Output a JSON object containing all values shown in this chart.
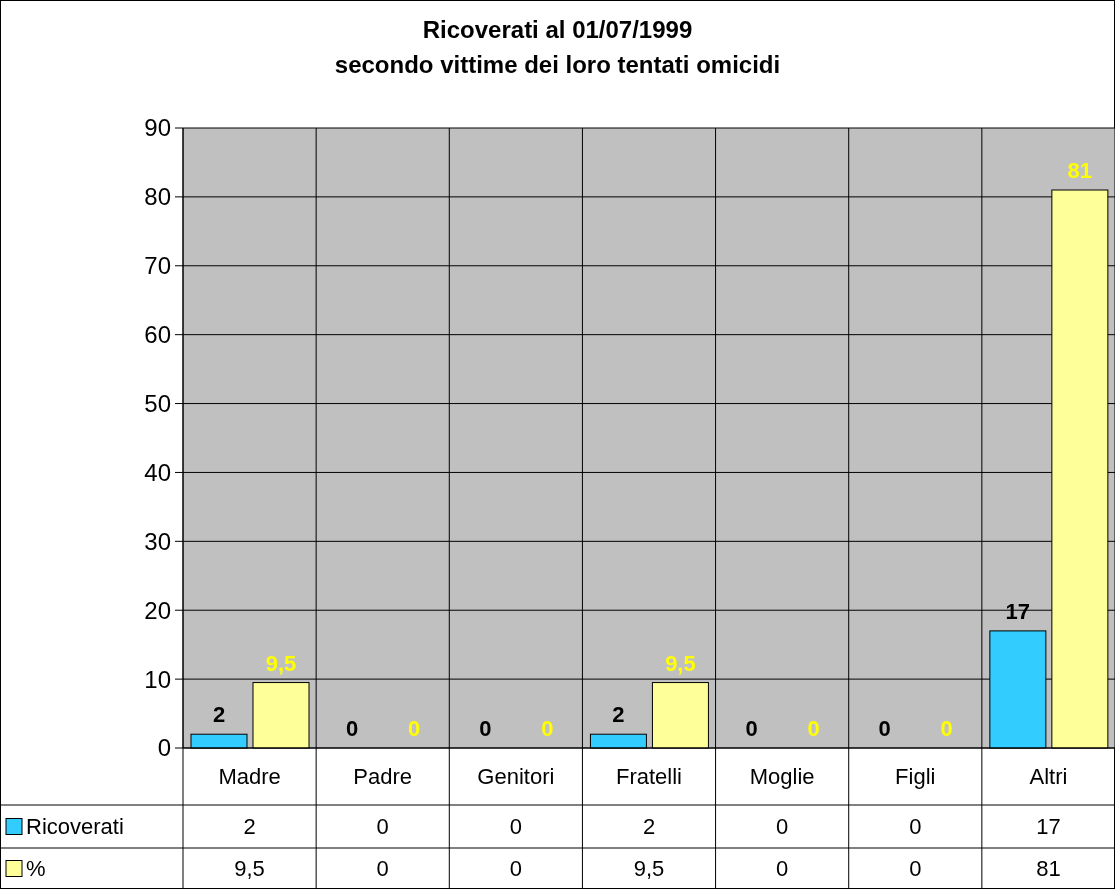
{
  "chart_data": {
    "type": "bar",
    "title": "Ricoverati al 01/07/1999\nsecondo vittime dei loro tentati omicidi",
    "categories": [
      "Madre",
      "Padre",
      "Genitori",
      "Fratelli",
      "Moglie",
      "Figli",
      "Altri"
    ],
    "series": [
      {
        "name": "Ricoverati",
        "color": "#33ccff",
        "values": [
          2,
          0,
          0,
          2,
          0,
          0,
          17
        ],
        "value_labels": [
          "2",
          "0",
          "0",
          "2",
          "0",
          "0",
          "17"
        ]
      },
      {
        "name": "%",
        "color": "#ffff99",
        "values": [
          9.5,
          0,
          0,
          9.5,
          0,
          0,
          81
        ],
        "value_labels": [
          "9,5",
          "0",
          "0",
          "9,5",
          "0",
          "0",
          "81"
        ]
      }
    ],
    "ylim": [
      0,
      90
    ],
    "yticks": [
      0,
      10,
      20,
      30,
      40,
      50,
      60,
      70,
      80,
      90
    ],
    "grid": true,
    "legend": "bottom"
  }
}
